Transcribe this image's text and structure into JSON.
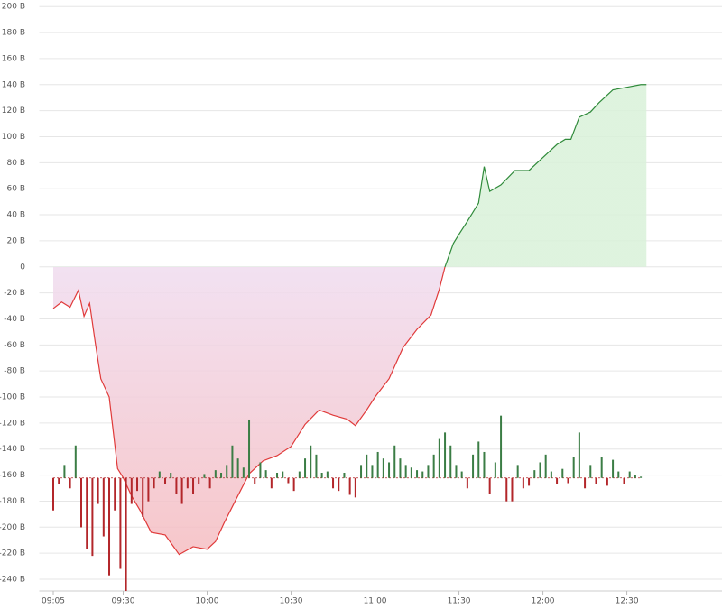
{
  "chart_data": {
    "type": "combo",
    "xlim": [
      540,
      784
    ],
    "ylim": [
      -249,
      205
    ],
    "y2lim": [
      -87,
      368
    ],
    "grid": true,
    "xticks": [
      {
        "value": 545,
        "label": "09:05"
      },
      {
        "value": 570,
        "label": "09:30"
      },
      {
        "value": 600,
        "label": "10:00"
      },
      {
        "value": 630,
        "label": "10:30"
      },
      {
        "value": 660,
        "label": "11:00"
      },
      {
        "value": 690,
        "label": "11:30"
      },
      {
        "value": 720,
        "label": "12:00"
      },
      {
        "value": 750,
        "label": "12:30"
      }
    ],
    "yticks": [
      {
        "value": 200,
        "label": "200 B"
      },
      {
        "value": 180,
        "label": "180 B"
      },
      {
        "value": 160,
        "label": "160 B"
      },
      {
        "value": 140,
        "label": "140 B"
      },
      {
        "value": 120,
        "label": "120 B"
      },
      {
        "value": 100,
        "label": "100 B"
      },
      {
        "value": 80,
        "label": "80 B"
      },
      {
        "value": 60,
        "label": "60 B"
      },
      {
        "value": 40,
        "label": "40 B"
      },
      {
        "value": 20,
        "label": "20 B"
      },
      0,
      {
        "value": -20,
        "label": "-20 B"
      },
      {
        "value": -40,
        "label": "-40 B"
      },
      {
        "value": -60,
        "label": "-60 B"
      },
      {
        "value": -80,
        "label": "-80 B"
      },
      {
        "value": -100,
        "label": "-100 B"
      },
      {
        "value": -120,
        "label": "-120 B"
      },
      {
        "value": -140,
        "label": "-140 B"
      },
      {
        "value": -160,
        "label": "-160 B"
      },
      {
        "value": -180,
        "label": "-180 B"
      },
      {
        "value": -200,
        "label": "-200 B"
      },
      {
        "value": -220,
        "label": "-220 B"
      },
      {
        "value": -240,
        "label": "-240 B"
      }
    ],
    "series": [
      {
        "type": "line",
        "pos_color": "#2f8a3a",
        "neg_color": "#e03a3a",
        "pos_fill": "#d9f1d9",
        "neg_fill": "#f0dcef",
        "neg_fill_low": "#f6b9bb",
        "x": [
          545,
          548,
          551,
          554,
          556,
          558,
          560,
          562,
          565,
          568,
          570,
          573,
          576,
          580,
          585,
          590,
          595,
          600,
          603,
          606,
          610,
          615,
          620,
          625,
          630,
          635,
          640,
          645,
          650,
          653,
          657,
          660,
          665,
          670,
          675,
          680,
          683,
          685,
          688,
          690,
          693,
          697,
          699,
          701,
          705,
          710,
          715,
          720,
          725,
          728,
          730,
          733,
          737,
          740,
          745,
          750,
          755,
          757
        ],
        "values": [
          -32,
          -27,
          -31,
          -18,
          -38,
          -28,
          -58,
          -86,
          -100,
          -155,
          -162,
          -176,
          -187,
          -204,
          -206,
          -221,
          -215,
          -217,
          -211,
          -197,
          -180,
          -159,
          -149,
          -145,
          -138,
          -121,
          -110,
          -114,
          -117,
          -122,
          -110,
          -100,
          -86,
          -62,
          -48,
          -37,
          -17,
          0,
          18,
          25,
          35,
          49,
          77,
          58,
          63,
          74,
          74,
          84,
          94,
          98,
          98,
          115,
          119,
          126,
          136,
          138,
          140,
          140
        ]
      },
      {
        "type": "bar",
        "axis": "y2",
        "pos_color": "#3b7d45",
        "neg_color": "#b3262a",
        "x": [
          545,
          547,
          549,
          551,
          553,
          555,
          557,
          559,
          561,
          563,
          565,
          567,
          569,
          571,
          573,
          575,
          577,
          579,
          581,
          583,
          585,
          587,
          589,
          591,
          593,
          595,
          597,
          599,
          601,
          603,
          605,
          607,
          609,
          611,
          613,
          615,
          617,
          619,
          621,
          623,
          625,
          627,
          629,
          631,
          633,
          635,
          637,
          639,
          641,
          643,
          645,
          647,
          649,
          651,
          653,
          655,
          657,
          659,
          661,
          663,
          665,
          667,
          669,
          671,
          673,
          675,
          677,
          679,
          681,
          683,
          685,
          687,
          689,
          691,
          693,
          695,
          697,
          699,
          701,
          703,
          705,
          707,
          709,
          711,
          713,
          715,
          717,
          719,
          721,
          723,
          725,
          727,
          729,
          731,
          733,
          735,
          737,
          739,
          741,
          743,
          745,
          747,
          749,
          751,
          753,
          755
        ],
        "values": [
          -25,
          -5,
          10,
          -8,
          25,
          -38,
          -55,
          -60,
          -20,
          -45,
          -75,
          -25,
          -70,
          -87,
          -20,
          -10,
          -30,
          -18,
          -8,
          5,
          -5,
          4,
          -12,
          -20,
          -8,
          -12,
          -5,
          3,
          -8,
          6,
          4,
          10,
          25,
          15,
          8,
          45,
          -5,
          12,
          6,
          -8,
          4,
          5,
          -4,
          -10,
          5,
          15,
          25,
          18,
          4,
          5,
          -8,
          -10,
          4,
          -13,
          -15,
          10,
          18,
          10,
          20,
          15,
          12,
          25,
          15,
          10,
          8,
          6,
          5,
          10,
          18,
          30,
          35,
          25,
          10,
          5,
          -8,
          18,
          28,
          20,
          -12,
          12,
          48,
          -18,
          -18,
          10,
          -8,
          -6,
          6,
          12,
          18,
          5,
          -5,
          7,
          -4,
          16,
          35,
          -8,
          10,
          -5,
          16,
          -6,
          14,
          5,
          -5,
          5,
          2,
          1
        ]
      }
    ]
  }
}
